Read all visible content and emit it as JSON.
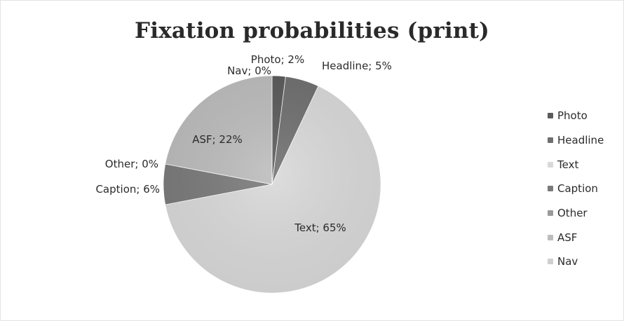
{
  "chart_data": {
    "type": "pie",
    "title": "Fixation probabilities (print)",
    "slices": [
      {
        "name": "Photo",
        "value": 2,
        "label": "Photo; 2%",
        "color": "#5a5a5a"
      },
      {
        "name": "Headline",
        "value": 5,
        "label": "Headline; 5%",
        "color": "#6f6f6f"
      },
      {
        "name": "Text",
        "value": 65,
        "label": "Text; 65%",
        "color": "#d9d9d9"
      },
      {
        "name": "Caption",
        "value": 6,
        "label": "Caption; 6%",
        "color": "#7a7a7a"
      },
      {
        "name": "Other",
        "value": 0,
        "label": "Other; 0%",
        "color": "#9a9a9a"
      },
      {
        "name": "ASF",
        "value": 22,
        "label": "ASF; 22%",
        "color": "#bcbcbc"
      },
      {
        "name": "Nav",
        "value": 0,
        "label": "Nav; 0%",
        "color": "#cfcfcf"
      }
    ],
    "legend": [
      "Photo",
      "Headline",
      "Text",
      "Caption",
      "Other",
      "ASF",
      "Nav"
    ],
    "legend_position": "right"
  }
}
